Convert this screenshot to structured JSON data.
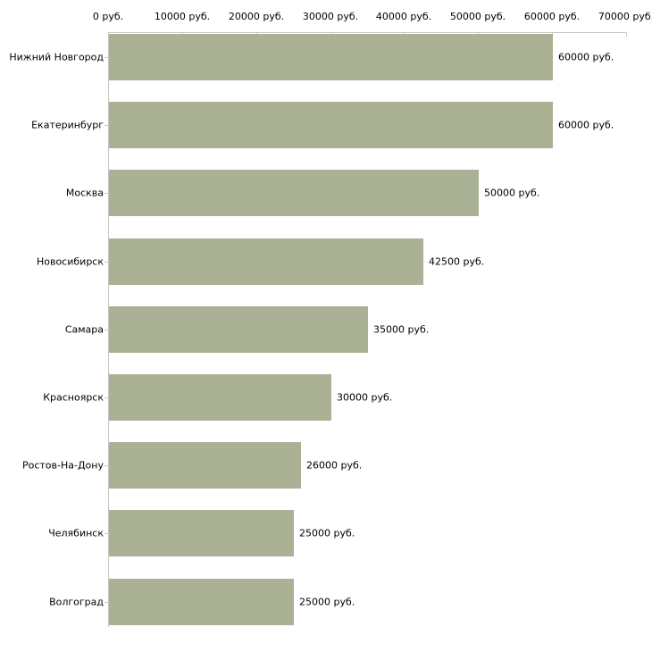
{
  "chart_data": {
    "type": "bar",
    "orientation": "horizontal",
    "title": "",
    "xlabel": "",
    "ylabel": "",
    "unit": "руб.",
    "categories": [
      "Нижний Новгород",
      "Екатеринбург",
      "Москва",
      "Новосибирск",
      "Самара",
      "Красноярск",
      "Ростов-На-Дону",
      "Челябинск",
      "Волгоград"
    ],
    "values": [
      60000,
      60000,
      50000,
      42500,
      35000,
      30000,
      26000,
      25000,
      25000
    ],
    "value_labels": [
      "60000 руб.",
      "60000 руб.",
      "50000 руб.",
      "42500 руб.",
      "35000 руб.",
      "30000 руб.",
      "26000 руб.",
      "25000 руб.",
      "25000 руб."
    ],
    "x_ticks": [
      0,
      10000,
      20000,
      30000,
      40000,
      50000,
      60000,
      70000
    ],
    "x_tick_labels": [
      "0 руб.",
      "10000 руб.",
      "20000 руб.",
      "30000 руб.",
      "40000 руб.",
      "50000 руб.",
      "60000 руб.",
      "70000 руб."
    ],
    "xlim": [
      0,
      70000
    ],
    "grid": false,
    "legend": false,
    "colors": {
      "bar": "#aab194",
      "axis_line": "#c6c6c6",
      "tick_mark": "#cdc8a4",
      "text": "#000000",
      "background": "#ffffff"
    }
  }
}
